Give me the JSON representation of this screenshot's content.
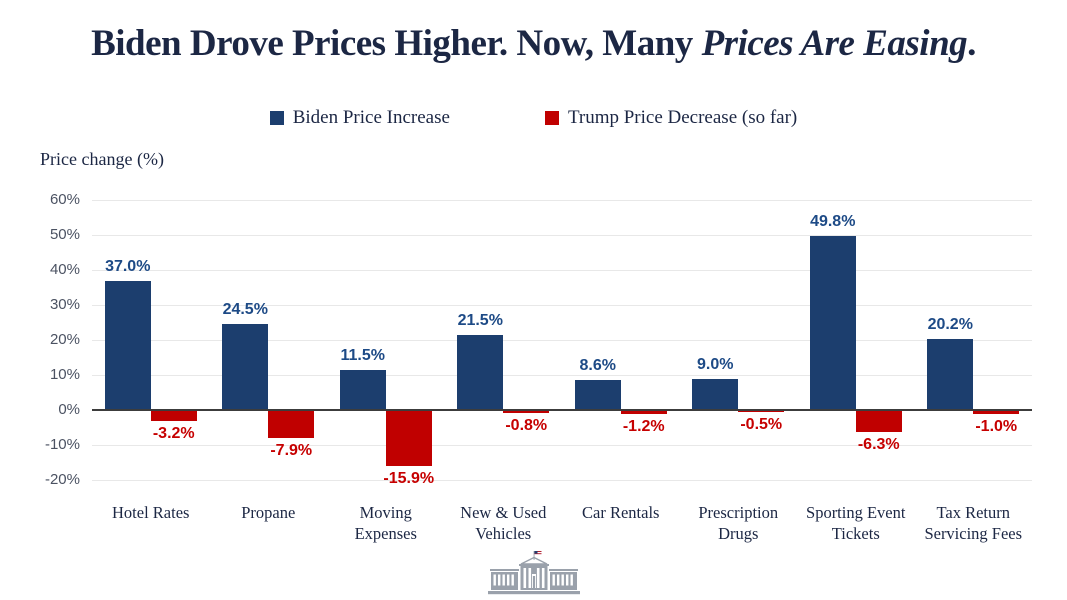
{
  "title": {
    "prefix": "Biden Drove Prices Higher. Now, Many ",
    "italic": "Prices Are Easing",
    "suffix": "."
  },
  "legend": [
    {
      "label": "Biden Price Increase",
      "color": "#1c3e6e"
    },
    {
      "label": "Trump Price Decrease (so far)",
      "color": "#c00000"
    }
  ],
  "axis_label": "Price change (%)",
  "chart_data": {
    "type": "bar",
    "title": "Biden Drove Prices Higher. Now, Many Prices Are Easing.",
    "ylabel": "Price change (%)",
    "categories": [
      "Hotel Rates",
      "Propane",
      "Moving Expenses",
      "New & Used Vehicles",
      "Car Rentals",
      "Prescription Drugs",
      "Sporting Event Tickets",
      "Tax Return Servicing Fees"
    ],
    "series": [
      {
        "name": "Biden Price Increase",
        "color": "#1c3e6e",
        "label_color": "#1d4a86",
        "values": [
          37.0,
          24.5,
          11.5,
          21.5,
          8.6,
          9.0,
          49.8,
          20.2
        ]
      },
      {
        "name": "Trump Price Decrease (so far)",
        "color": "#c00000",
        "label_color": "#c60000",
        "values": [
          -3.2,
          -7.9,
          -15.9,
          -0.8,
          -1.2,
          -0.5,
          -6.3,
          -1.0
        ]
      }
    ],
    "value_suffix": "%",
    "value_decimals": 1,
    "ylim": [
      -20,
      60
    ],
    "ytick_step": 10,
    "ytick_suffix": "%",
    "grid": true,
    "legend_position": "top"
  },
  "footer": {
    "logo": "white-house-logo"
  },
  "colors": {
    "grid": "#e8e8e8",
    "zero_line": "#3c3c3c",
    "tick_text": "#4b5262",
    "title_text": "#1c2744",
    "logo_gray": "#9aa1ab"
  }
}
